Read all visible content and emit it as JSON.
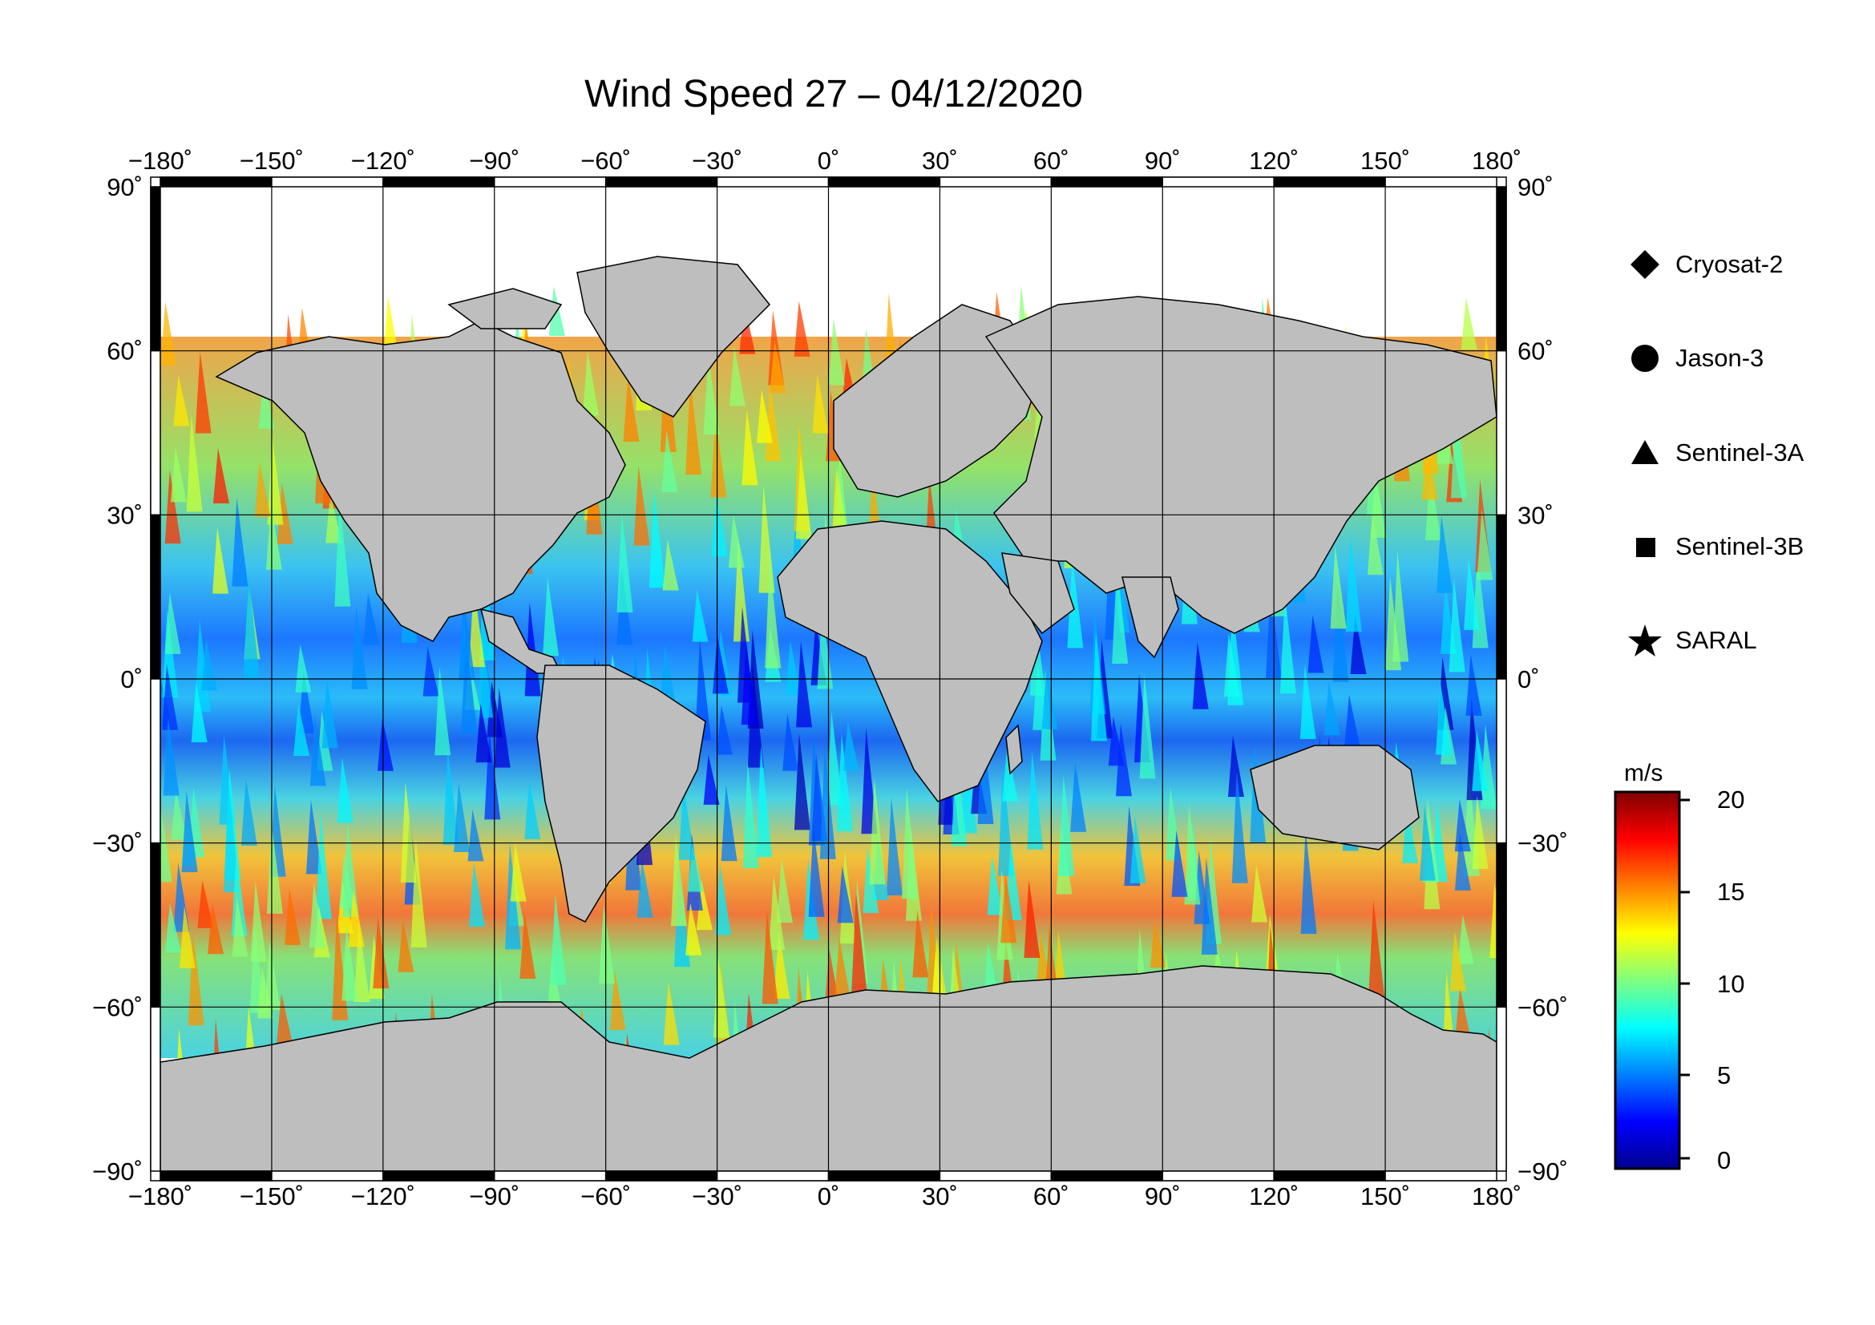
{
  "title": "Wind Speed 27 – 04/12/2020",
  "map": {
    "projection": "equirectangular",
    "lon_range": [
      -180,
      180
    ],
    "lat_range": [
      -90,
      90
    ],
    "lon_ticks": [
      "−180˚",
      "−150˚",
      "−120˚",
      "−90˚",
      "−60˚",
      "−30˚",
      "0˚",
      "30˚",
      "60˚",
      "90˚",
      "120˚",
      "150˚",
      "180˚"
    ],
    "lat_ticks_left": [
      "90˚",
      "60˚",
      "30˚",
      "0˚",
      "−30˚",
      "−60˚",
      "−90˚"
    ],
    "lat_ticks_right": [
      "90˚",
      "60˚",
      "30˚",
      "0˚",
      "−30˚",
      "−60˚",
      "−90˚"
    ],
    "land_color": "#bebebe",
    "ice_color": "#ffffff",
    "grid": true
  },
  "legend": {
    "items": [
      {
        "label": "Cryosat-2",
        "symbol": "diamond-icon"
      },
      {
        "label": "Jason-3",
        "symbol": "circle-icon"
      },
      {
        "label": "Sentinel-3A",
        "symbol": "triangle-icon"
      },
      {
        "label": "Sentinel-3B",
        "symbol": "square-icon"
      },
      {
        "label": "SARAL",
        "symbol": "star-icon"
      }
    ]
  },
  "colorbar": {
    "unit": "m/s",
    "range": [
      0,
      20
    ],
    "ticks": [
      "20",
      "15",
      "10",
      "5",
      "0"
    ],
    "colormap": "jet"
  }
}
